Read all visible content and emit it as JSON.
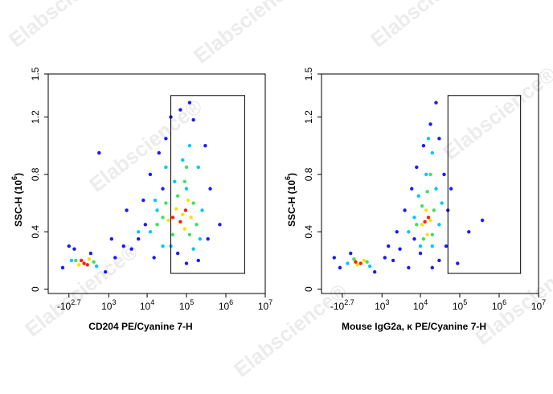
{
  "watermark": "Elabscience®",
  "chart_data": [
    {
      "type": "scatter",
      "xscale": "biexponential",
      "xlabel": "CD204 PE/Cyanine 7-H",
      "ylabel": {
        "text": "SSC-H (10",
        "sup": "6",
        "end": ")"
      },
      "xlim": [
        -2000,
        10000000
      ],
      "ylim": [
        -0.03,
        1.5
      ],
      "xticks": [
        {
          "value": -501,
          "label": "-10",
          "sup": "2.7"
        },
        {
          "value": 1000,
          "label": "10",
          "sup": "3"
        },
        {
          "value": 10000,
          "label": "10",
          "sup": "4"
        },
        {
          "value": 100000,
          "label": "10",
          "sup": "5"
        },
        {
          "value": 1000000,
          "label": "10",
          "sup": "6"
        },
        {
          "value": 10000000,
          "label": "10",
          "sup": "7"
        }
      ],
      "yticks": [
        0,
        0.4,
        0.8,
        1.2,
        1.5
      ],
      "gate": {
        "x": [
          40000,
          3000000
        ],
        "y": [
          0.11,
          1.35
        ]
      },
      "series": [
        {
          "color": "#1a1aff",
          "x": [
            -800,
            -300,
            200,
            800,
            1500,
            2500,
            4000,
            6000,
            3000,
            8000,
            12000,
            20000,
            40000,
            70000,
            150000,
            300000,
            400000,
            350000,
            200000,
            100000,
            60000,
            15000,
            25000,
            9000,
            1200,
            -500,
            500,
            700000,
            30000,
            120000
          ],
          "values": [
            0.15,
            0.28,
            0.25,
            0.12,
            0.22,
            0.3,
            0.28,
            0.35,
            0.55,
            0.62,
            0.8,
            0.95,
            1.2,
            1.25,
            1.18,
            1.0,
            0.7,
            0.35,
            0.2,
            0.18,
            0.25,
            0.22,
            0.7,
            0.45,
            0.35,
            0.3,
            0.95,
            0.45,
            1.05,
            1.3
          ]
        },
        {
          "color": "#00c8ff",
          "x": [
            -400,
            400,
            12000,
            18000,
            25000,
            50000,
            80000,
            120000,
            200000,
            250000,
            220000,
            40000,
            16000,
            100000,
            150000,
            6000,
            30000
          ],
          "values": [
            0.2,
            0.16,
            0.4,
            0.55,
            0.3,
            0.75,
            0.9,
            1.0,
            0.85,
            0.55,
            0.35,
            0.3,
            0.62,
            0.7,
            0.28,
            0.4,
            0.85
          ]
        },
        {
          "color": "#40e060",
          "x": [
            -250,
            300,
            18000,
            30000,
            60000,
            90000,
            150000,
            180000,
            120000,
            45000,
            25000,
            100000
          ],
          "values": [
            0.2,
            0.19,
            0.45,
            0.6,
            0.65,
            0.75,
            0.6,
            0.45,
            0.38,
            0.38,
            0.5,
            0.85
          ]
        },
        {
          "color": "#ffe000",
          "x": [
            -150,
            150,
            35000,
            55000,
            80000,
            110000,
            90000,
            130000
          ],
          "values": [
            0.17,
            0.21,
            0.48,
            0.56,
            0.52,
            0.62,
            0.42,
            0.5
          ]
        },
        {
          "color": "#ff2000",
          "x": [
            0,
            -80,
            100,
            45000,
            70000,
            95000
          ],
          "values": [
            0.18,
            0.2,
            0.17,
            0.5,
            0.47,
            0.55
          ]
        }
      ]
    },
    {
      "type": "scatter",
      "xscale": "biexponential",
      "xlabel": "Mouse IgG2a, κ PE/Cyanine 7-H",
      "ylabel": {
        "text": "SSC-H (10",
        "sup": "6",
        "end": ")"
      },
      "xlim": [
        -2000,
        10000000
      ],
      "ylim": [
        -0.03,
        1.5
      ],
      "xticks": [
        {
          "value": -501,
          "label": "-10",
          "sup": "2.7"
        },
        {
          "value": 1000,
          "label": "10",
          "sup": "3"
        },
        {
          "value": 10000,
          "label": "10",
          "sup": "4"
        },
        {
          "value": 100000,
          "label": "10",
          "sup": "5"
        },
        {
          "value": 1000000,
          "label": "10",
          "sup": "6"
        },
        {
          "value": 10000000,
          "label": "10",
          "sup": "7"
        }
      ],
      "yticks": [
        0,
        0.4,
        0.8,
        1.2,
        1.5
      ],
      "gate": {
        "x": [
          50000,
          3500000
        ],
        "y": [
          0.11,
          1.35
        ]
      },
      "series": [
        {
          "color": "#1a1aff",
          "x": [
            -600,
            -200,
            600,
            1200,
            2000,
            3000,
            5000,
            2500,
            4000,
            6000,
            8000,
            12000,
            18000,
            25000,
            30000,
            40000,
            50000,
            45000,
            30000,
            20000,
            10000,
            1500,
            170000,
            375000,
            88000,
            -900,
            7000,
            60000
          ],
          "values": [
            0.15,
            0.25,
            0.12,
            0.22,
            0.2,
            0.28,
            0.15,
            0.4,
            0.55,
            0.7,
            0.85,
            1.0,
            1.15,
            1.3,
            1.05,
            0.8,
            0.55,
            0.3,
            0.2,
            0.15,
            0.25,
            0.3,
            0.4,
            0.48,
            0.18,
            0.22,
            0.35,
            0.7
          ]
        },
        {
          "color": "#00c8ff",
          "x": [
            -300,
            400,
            5000,
            7000,
            9000,
            14000,
            20000,
            25000,
            30000,
            20000,
            10000,
            16000,
            35000
          ],
          "values": [
            0.18,
            0.16,
            0.4,
            0.5,
            0.65,
            0.8,
            0.95,
            0.7,
            0.45,
            0.3,
            0.3,
            1.05,
            0.6
          ]
        },
        {
          "color": "#40e060",
          "x": [
            -100,
            300,
            8000,
            11000,
            15000,
            22000,
            20000,
            12000,
            18000
          ],
          "values": [
            0.21,
            0.19,
            0.45,
            0.58,
            0.68,
            0.55,
            0.38,
            0.35,
            0.8
          ]
        },
        {
          "color": "#ffe000",
          "x": [
            0,
            200,
            11000,
            14000,
            18000,
            15000
          ],
          "values": [
            0.17,
            0.2,
            0.45,
            0.55,
            0.48,
            0.38
          ]
        },
        {
          "color": "#ff2000",
          "x": [
            100,
            -50,
            13000,
            16000
          ],
          "values": [
            0.18,
            0.19,
            0.47,
            0.5
          ]
        }
      ]
    }
  ]
}
